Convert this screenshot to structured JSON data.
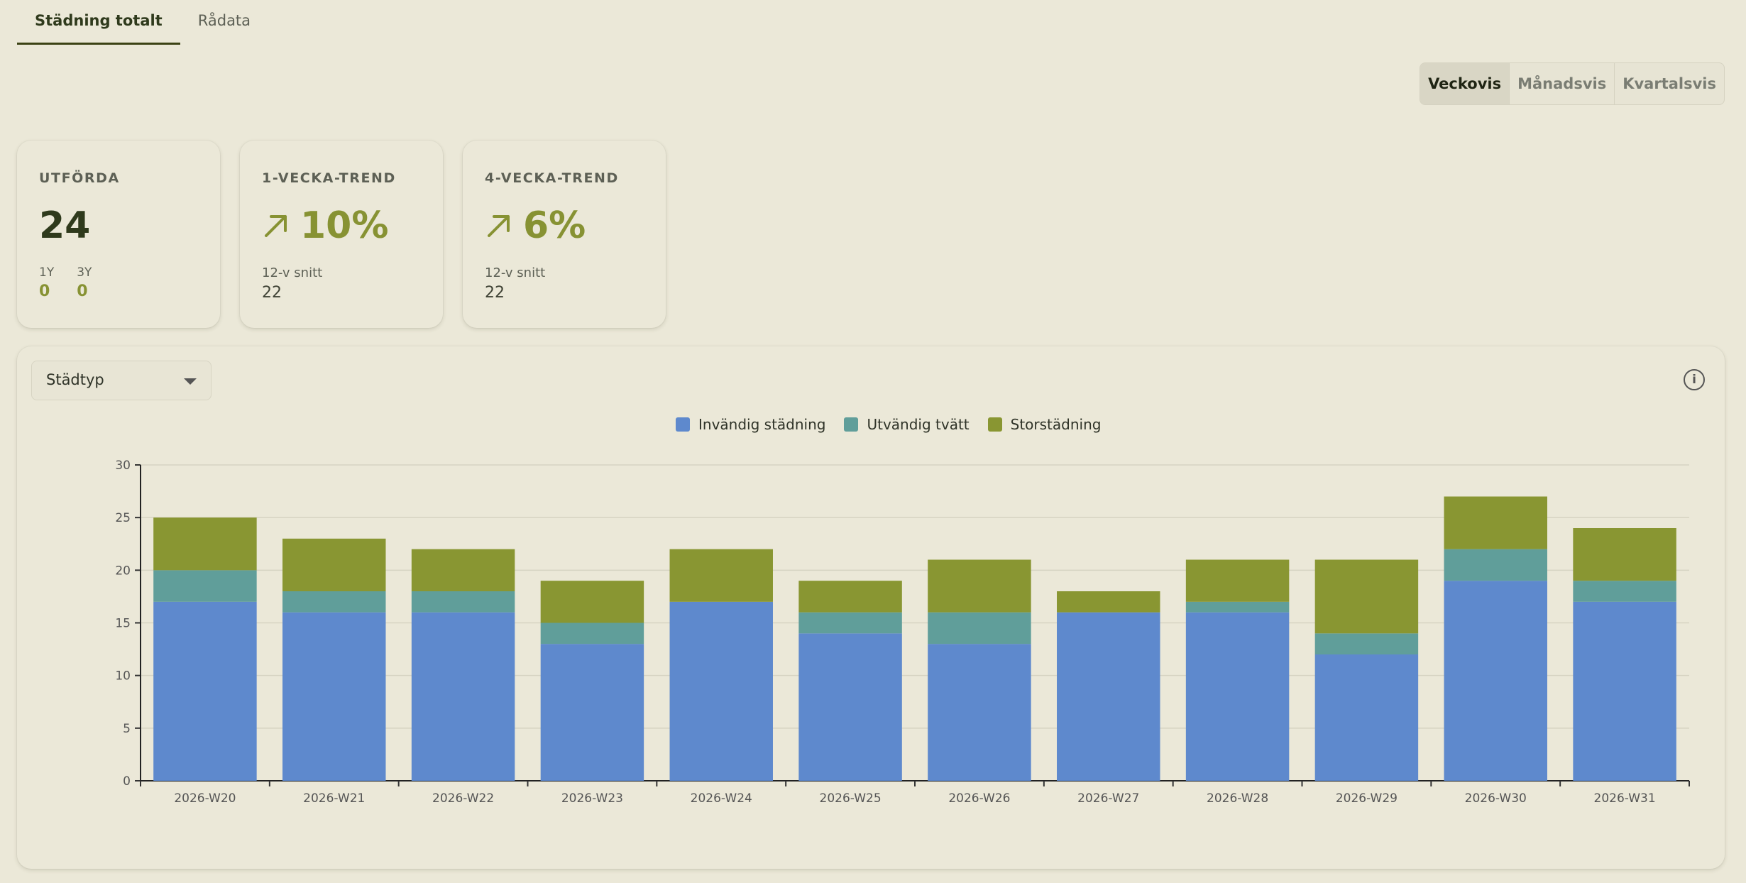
{
  "tabs": [
    {
      "label": "Städning totalt",
      "active": true
    },
    {
      "label": "Rådata",
      "active": false
    }
  ],
  "period_toggle": [
    {
      "label": "Veckovis",
      "active": true
    },
    {
      "label": "Månadsvis",
      "active": false
    },
    {
      "label": "Kvartalsvis",
      "active": false
    }
  ],
  "kpis": {
    "done": {
      "label": "UTFÖRDA",
      "value": "24",
      "y1_label": "1Y",
      "y1_value": "0",
      "y3_label": "3Y",
      "y3_value": "0"
    },
    "trend1": {
      "label": "1-VECKA-TREND",
      "value": "10%",
      "icon": "arrow-up-right-icon",
      "sub_label": "12-v snitt",
      "sub_value": "22"
    },
    "trend4": {
      "label": "4-VECKA-TREND",
      "value": "6%",
      "icon": "arrow-up-right-icon",
      "sub_label": "12-v snitt",
      "sub_value": "22"
    }
  },
  "filter": {
    "selected": "Städtyp"
  },
  "colors": {
    "invandig": "#5e89cd",
    "utvandig": "#609e9a",
    "stor": "#899632",
    "accent": "#879233"
  },
  "chart_data": {
    "type": "bar",
    "stacked": true,
    "categories": [
      "2026-W20",
      "2026-W21",
      "2026-W22",
      "2026-W23",
      "2026-W24",
      "2026-W25",
      "2026-W26",
      "2026-W27",
      "2026-W28",
      "2026-W29",
      "2026-W30",
      "2026-W31"
    ],
    "series": [
      {
        "name": "Invändig städning",
        "color": "#5e89cd",
        "values": [
          17,
          16,
          16,
          13,
          17,
          14,
          13,
          16,
          16,
          12,
          19,
          17
        ]
      },
      {
        "name": "Utvändig tvätt",
        "color": "#609e9a",
        "values": [
          3,
          2,
          2,
          2,
          0,
          2,
          3,
          0,
          1,
          2,
          3,
          2
        ]
      },
      {
        "name": "Storstädning",
        "color": "#899632",
        "values": [
          5,
          5,
          4,
          4,
          5,
          3,
          5,
          2,
          4,
          7,
          5,
          5
        ]
      }
    ],
    "ylim": [
      0,
      30
    ],
    "yticks": [
      0,
      5,
      10,
      15,
      20,
      25,
      30
    ],
    "grid": true,
    "legend": "top-center"
  }
}
